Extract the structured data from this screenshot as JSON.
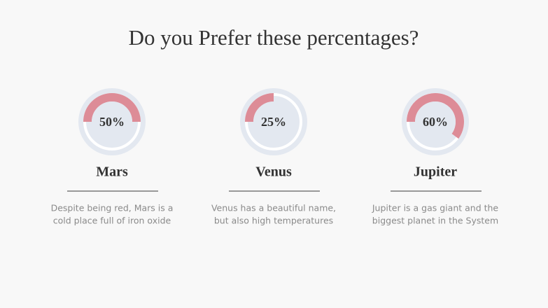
{
  "title": "Do you Prefer these percentages?",
  "range": [
    0,
    100
  ],
  "gauges": [
    {
      "value": 50,
      "value_label": "50%",
      "name": "Mars",
      "text": [
        "Despite being red, Mars is a",
        "cold place full of iron oxide"
      ]
    },
    {
      "value": 25,
      "value_label": "25%",
      "name": "Venus",
      "text": [
        "Venus has a beautiful name,",
        "but also high temperatures"
      ]
    },
    {
      "value": 60,
      "value_label": "60%",
      "name": "Jupiter",
      "text": [
        "Jupiter is a gas giant and the",
        "biggest planet in the System"
      ]
    }
  ]
}
